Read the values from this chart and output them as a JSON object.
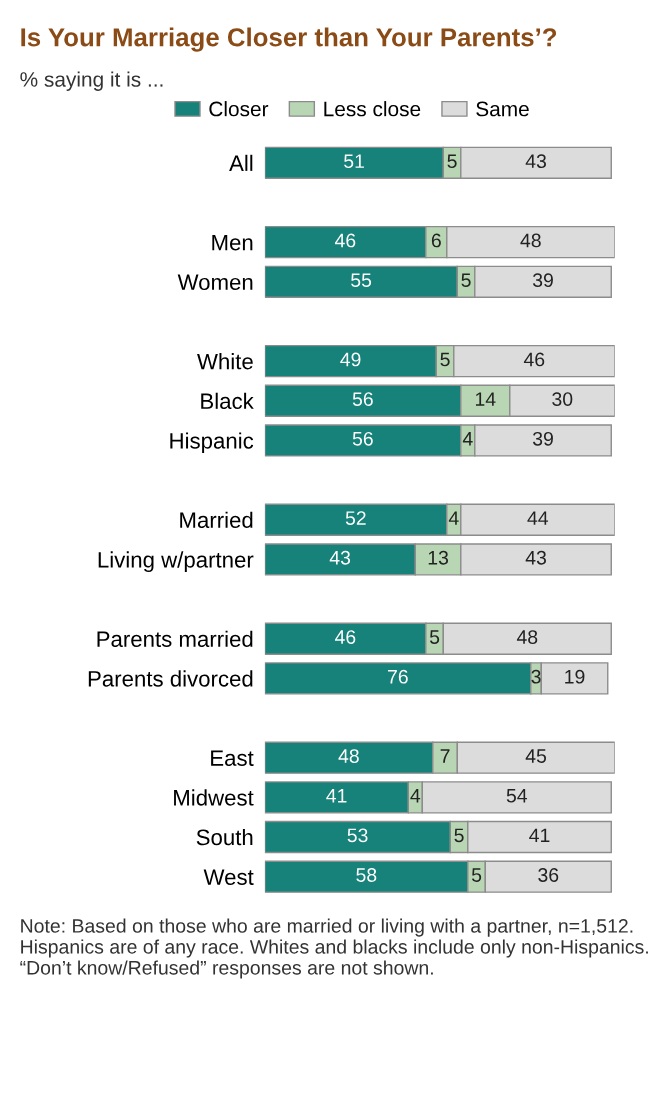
{
  "chart_data": {
    "type": "bar",
    "orientation": "horizontal",
    "stacked": true,
    "data_labels": true,
    "legend": "top",
    "grid": false,
    "title": "Is Your Marriage Closer than Your Parents’?",
    "subtitle": "% saying it is ...",
    "categories": [
      "All",
      null,
      "Men",
      "Women",
      null,
      "White",
      "Black",
      "Hispanic",
      null,
      "Married",
      "Living w/partner",
      null,
      "Parents married",
      "Parents divorced",
      null,
      "East",
      "Midwest",
      "South",
      "West"
    ],
    "series": [
      {
        "name": "Closer",
        "color": "#17827a",
        "values": [
          51,
          null,
          46,
          55,
          null,
          49,
          56,
          56,
          null,
          52,
          43,
          null,
          46,
          76,
          null,
          48,
          41,
          53,
          58
        ]
      },
      {
        "name": "Less close",
        "color": "#b9d6b4",
        "values": [
          5,
          null,
          6,
          5,
          null,
          5,
          14,
          4,
          null,
          4,
          13,
          null,
          5,
          3,
          null,
          7,
          4,
          5,
          5
        ]
      },
      {
        "name": "Same",
        "color": "#dcdcdc",
        "values": [
          43,
          null,
          48,
          39,
          null,
          46,
          30,
          39,
          null,
          44,
          43,
          null,
          48,
          19,
          null,
          45,
          54,
          41,
          36
        ]
      }
    ],
    "annotations": [
      "Note: Based on those who are married or living with a partner, n=1,512. Hispanics are of any race. Whites and blacks include only non-Hispanics. “Don’t know/Refused” responses are not shown."
    ]
  }
}
